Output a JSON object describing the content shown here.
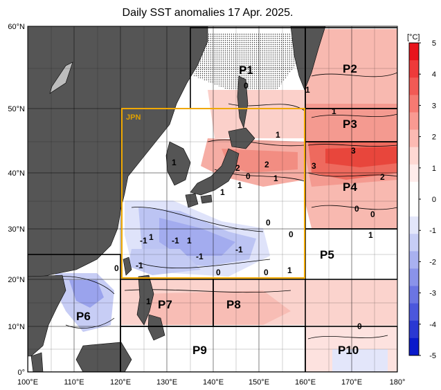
{
  "title": "Daily SST anomalies 17 Apr. 2025.",
  "colorbar": {
    "unit": "[°C]",
    "ticks": [
      "5",
      "4",
      "3",
      "2",
      "1",
      "0",
      "-1",
      "-2",
      "-3",
      "-4",
      "-5"
    ],
    "colors": [
      "#e8141c",
      "#ee3a3a",
      "#f25a55",
      "#f67a72",
      "#f99a92",
      "#fcbab3",
      "#fed8d3",
      "#ffeceb",
      "#ffffff",
      "#ffffff",
      "#e3e6fa",
      "#c7cdf5",
      "#a9b1f0",
      "#8a93ea",
      "#6b75e3",
      "#4b57dc",
      "#2a38d3",
      "#0a1acb"
    ]
  },
  "axes": {
    "lat_labels": [
      "60°N",
      "50°N",
      "40°N",
      "30°N",
      "20°N",
      "10°N",
      "0°"
    ],
    "lon_labels": [
      "100°E",
      "110°E",
      "120°E",
      "130°E",
      "140°E",
      "150°E",
      "160°E",
      "170°E",
      "180°"
    ]
  },
  "regions": [
    "P1",
    "P2",
    "P3",
    "P4",
    "P5",
    "P6",
    "P7",
    "P8",
    "P9",
    "P10"
  ],
  "jpn_box_label": "JPN",
  "contour_labels": [
    "0",
    "1",
    "1",
    "3",
    "3",
    "2",
    "2",
    "2",
    "1",
    "1",
    "0",
    "1",
    "1",
    "1",
    "0",
    "0",
    "1",
    "0",
    "0",
    "-1",
    "1",
    "1",
    "0",
    "0",
    "-1",
    "-1",
    "-1",
    "-1",
    "0",
    "1",
    "0",
    "1"
  ],
  "colors": {
    "land": "#555555",
    "jpn_box": "#f0a800",
    "grid": "#000000"
  }
}
